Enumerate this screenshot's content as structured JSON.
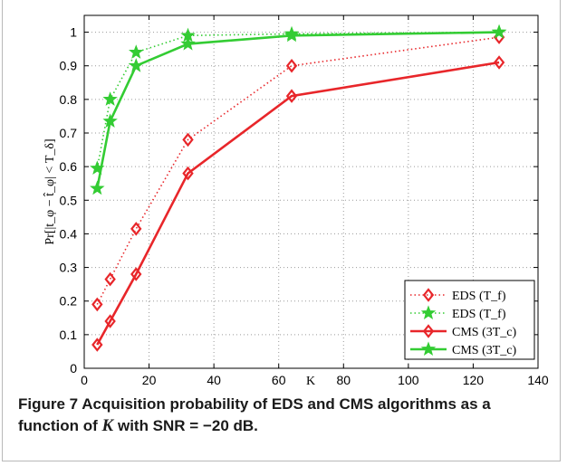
{
  "caption": {
    "label": "Figure 7",
    "text_before": "Acquisition probability of EDS and CMS algorithms as a function of",
    "var": "K",
    "text_after": "with SNR = −20 dB."
  },
  "chart_data": {
    "type": "line",
    "title": "",
    "xlabel": "K",
    "ylabel": "Pr[|t_φ − t̂_φ| < T_δ]",
    "xlim": [
      0,
      140
    ],
    "ylim": [
      0,
      1.05
    ],
    "xticks": [
      0,
      20,
      40,
      60,
      80,
      100,
      120,
      140
    ],
    "yticks": [
      0,
      0.1,
      0.2,
      0.3,
      0.4,
      0.5,
      0.6,
      0.7,
      0.8,
      0.9,
      1
    ],
    "grid": true,
    "legend_position": "bottom-right",
    "series": [
      {
        "name": "EDS (T_f)",
        "color": "#e8262a",
        "style": "dotted",
        "marker": "diamond",
        "x": [
          4,
          8,
          16,
          32,
          64,
          128
        ],
        "y": [
          0.19,
          0.265,
          0.415,
          0.68,
          0.9,
          0.985
        ]
      },
      {
        "name": "EDS (T_f)",
        "color": "#33cc33",
        "style": "dotted",
        "marker": "star",
        "x": [
          4,
          8,
          16,
          32,
          64,
          128
        ],
        "y": [
          0.595,
          0.8,
          0.94,
          0.99,
          0.995,
          1.0
        ]
      },
      {
        "name": "CMS (3T_c)",
        "color": "#e8262a",
        "style": "solid",
        "marker": "diamond",
        "x": [
          4,
          8,
          16,
          32,
          64,
          128
        ],
        "y": [
          0.07,
          0.14,
          0.28,
          0.58,
          0.81,
          0.91
        ]
      },
      {
        "name": "CMS (3T_c)",
        "color": "#33cc33",
        "style": "solid",
        "marker": "star",
        "x": [
          4,
          8,
          16,
          32,
          64,
          128
        ],
        "y": [
          0.535,
          0.735,
          0.9,
          0.965,
          0.99,
          1.0
        ]
      }
    ],
    "colors": {
      "red": "#e8262a",
      "green": "#33cc33"
    }
  }
}
